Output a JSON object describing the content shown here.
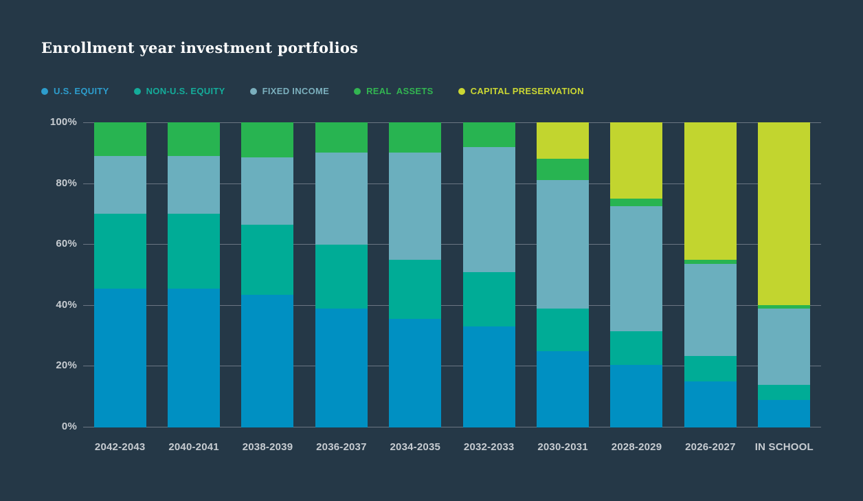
{
  "page": {
    "title": "Enrollment year investment portfolios"
  },
  "colors": {
    "background": "#253847",
    "gridline": "#6B7683",
    "axis_text": "#C7CCD1",
    "title_text": "#FFFFFF",
    "us_equity": "#0090C2",
    "non_us_equity": "#00AC96",
    "fixed_income": "#6BAFBE",
    "real_assets": "#28B451",
    "capital_preservation": "#C2D52F"
  },
  "legend": {
    "items": [
      {
        "label": "U.S. EQUITY",
        "color": "#2D9DCD"
      },
      {
        "label": "NON-U.S. EQUITY",
        "color": "#14AC9A"
      },
      {
        "label": "FIXED INCOME",
        "color": "#7BAFBD"
      },
      {
        "label": "REAL  ASSETS",
        "color": "#32B551"
      },
      {
        "label": "CAPITAL PRESERVATION",
        "color": "#CBD733"
      }
    ]
  },
  "chart_data": {
    "type": "bar",
    "stacked": true,
    "title": "Enrollment year investment portfolios",
    "categories": [
      "2042-2043",
      "2040-2041",
      "2038-2039",
      "2036-2037",
      "2034-2035",
      "2032-2033",
      "2030-2031",
      "2028-2029",
      "2026-2027",
      "IN SCHOOL"
    ],
    "series": [
      {
        "name": "U.S. EQUITY",
        "color": "#0090C2",
        "values": [
          45.5,
          45.5,
          43.5,
          39,
          35.5,
          33,
          25,
          20.5,
          15,
          9
        ]
      },
      {
        "name": "NON-U.S. EQUITY",
        "color": "#00AC96",
        "values": [
          24.5,
          24.5,
          23,
          21,
          19.5,
          18,
          14,
          11,
          8.5,
          5
        ]
      },
      {
        "name": "FIXED INCOME",
        "color": "#6BAFBE",
        "values": [
          19,
          19,
          22,
          30,
          35,
          41,
          42,
          41,
          30,
          25
        ]
      },
      {
        "name": "REAL ASSETS",
        "color": "#28B451",
        "values": [
          11,
          11,
          11.5,
          10,
          10,
          8,
          7,
          2.5,
          1.5,
          1
        ]
      },
      {
        "name": "CAPITAL PRESERVATION",
        "color": "#C2D52F",
        "values": [
          0,
          0,
          0,
          0,
          0,
          0,
          12,
          25,
          45,
          60
        ]
      }
    ],
    "yticks": [
      {
        "label": "0%",
        "value": 0
      },
      {
        "label": "20%",
        "value": 20
      },
      {
        "label": "40%",
        "value": 40
      },
      {
        "label": "60%",
        "value": 60
      },
      {
        "label": "80%",
        "value": 80
      },
      {
        "label": "100%",
        "value": 100
      }
    ],
    "ylim": [
      0,
      100
    ],
    "grid": true,
    "legend_position": "top",
    "unit": "percent"
  }
}
